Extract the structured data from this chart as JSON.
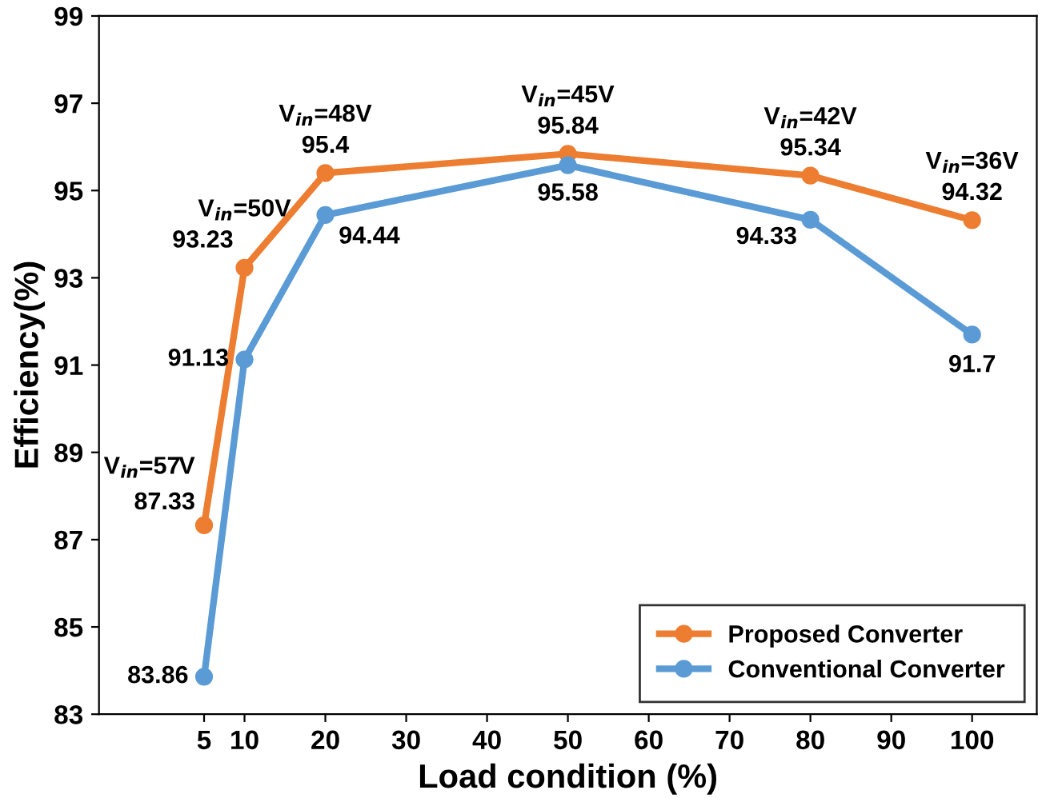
{
  "chart_data": {
    "type": "line",
    "xlabel": "Load condition (%)",
    "ylabel": "Efficiency(%)",
    "x": [
      5,
      10,
      20,
      50,
      80,
      100
    ],
    "series": [
      {
        "name": "Proposed Converter",
        "color": "#ed7d31",
        "values": [
          87.33,
          93.23,
          95.4,
          95.84,
          95.34,
          94.32
        ]
      },
      {
        "name": "Conventional Converter",
        "color": "#5b9bd5",
        "values": [
          83.86,
          91.13,
          94.44,
          95.58,
          94.33,
          91.7
        ]
      }
    ],
    "xlim": [
      -8,
      108
    ],
    "xticks": [
      5,
      10,
      20,
      30,
      40,
      50,
      60,
      70,
      80,
      90,
      100
    ],
    "ylim": [
      83,
      99
    ],
    "yticks": [
      83,
      85,
      87,
      89,
      91,
      93,
      95,
      97,
      99
    ],
    "data_labels": true,
    "marker": "circle",
    "line_style": "solid",
    "legend": "bottom right",
    "grid": false,
    "annotations": [
      {
        "text": "V$_{in}$=57V",
        "x": 5,
        "y": 87.33
      },
      {
        "text": "V$_{in}$=50V",
        "x": 10,
        "y": 93.23
      },
      {
        "text": "V$_{in}$=48V",
        "x": 20,
        "y": 95.4
      },
      {
        "text": "V$_{in}$=45V",
        "x": 50,
        "y": 95.84
      },
      {
        "text": "V$_{in}$=42V",
        "x": 80,
        "y": 95.34
      },
      {
        "text": "V$_{in}$=36V",
        "x": 100,
        "y": 94.32
      }
    ]
  }
}
